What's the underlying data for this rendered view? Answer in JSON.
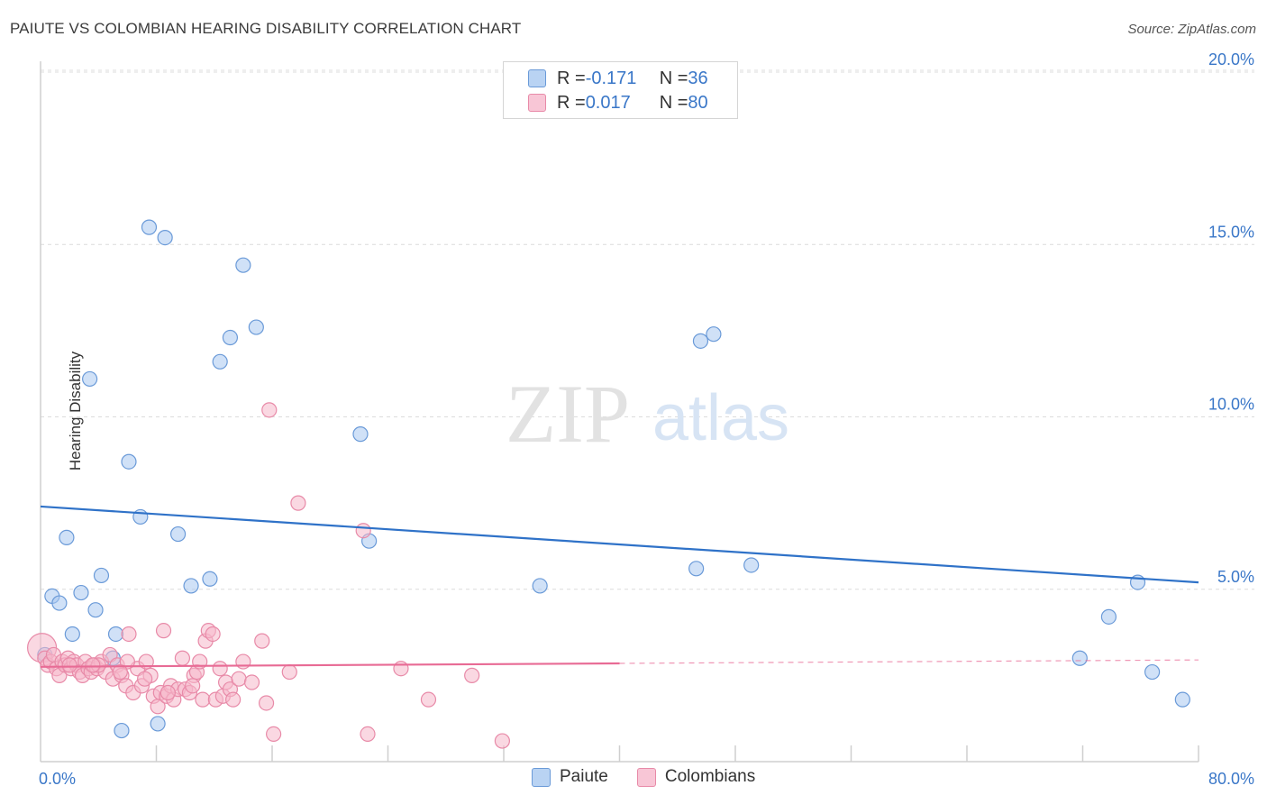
{
  "title": "PAIUTE VS COLOMBIAN HEARING DISABILITY CORRELATION CHART",
  "source": "Source: ZipAtlas.com",
  "watermark": {
    "zip": "ZIP",
    "atlas": "atlas"
  },
  "legend": {
    "rows": [
      {
        "r_label": "R = ",
        "r_value": "-0.171",
        "n_label": "N = ",
        "n_value": "36"
      },
      {
        "r_label": "R = ",
        "r_value": "0.017",
        "n_label": "N = ",
        "n_value": "80"
      }
    ]
  },
  "colors": {
    "paiute_fill": "#a9c8f0",
    "paiute_stroke": "#6a9ad8",
    "paiute_line": "#2f72c8",
    "colombian_fill": "#f6b8cb",
    "colombian_stroke": "#e88aa8",
    "colombian_line": "#e86b95",
    "axis_text": "#3a77c8",
    "grid": "#dcdcdc"
  },
  "chart_data": {
    "type": "scatter",
    "title": "PAIUTE VS COLOMBIAN HEARING DISABILITY CORRELATION CHART",
    "xlabel": "",
    "ylabel": "Hearing Disability",
    "xlim": [
      0,
      80
    ],
    "ylim": [
      0,
      20.5
    ],
    "x_tick_labels": [
      "0.0%",
      "80.0%"
    ],
    "y_ticks": [
      5,
      10,
      15,
      20
    ],
    "y_tick_labels": [
      "5.0%",
      "10.0%",
      "15.0%",
      "20.0%"
    ],
    "series": [
      {
        "name": "Paiute",
        "r": -0.171,
        "n": 36,
        "trend": {
          "x": [
            0,
            80
          ],
          "y": [
            7.4,
            5.2
          ],
          "dashed_from": null
        },
        "points": [
          {
            "x": 0.3,
            "y": 3.1
          },
          {
            "x": 0.8,
            "y": 4.8
          },
          {
            "x": 1.3,
            "y": 4.6
          },
          {
            "x": 1.8,
            "y": 6.5
          },
          {
            "x": 2.2,
            "y": 3.7
          },
          {
            "x": 2.8,
            "y": 4.9
          },
          {
            "x": 3.4,
            "y": 11.1
          },
          {
            "x": 3.8,
            "y": 4.4
          },
          {
            "x": 4.2,
            "y": 5.4
          },
          {
            "x": 5.2,
            "y": 3.7
          },
          {
            "x": 5.0,
            "y": 3.0
          },
          {
            "x": 5.6,
            "y": 0.9
          },
          {
            "x": 6.1,
            "y": 8.7
          },
          {
            "x": 6.9,
            "y": 7.1
          },
          {
            "x": 7.5,
            "y": 15.5
          },
          {
            "x": 8.1,
            "y": 1.1
          },
          {
            "x": 8.6,
            "y": 15.2
          },
          {
            "x": 9.5,
            "y": 6.6
          },
          {
            "x": 10.4,
            "y": 5.1
          },
          {
            "x": 11.7,
            "y": 5.3
          },
          {
            "x": 12.4,
            "y": 11.6
          },
          {
            "x": 13.1,
            "y": 12.3
          },
          {
            "x": 14.0,
            "y": 14.4
          },
          {
            "x": 14.9,
            "y": 12.6
          },
          {
            "x": 22.1,
            "y": 9.5
          },
          {
            "x": 22.7,
            "y": 6.4
          },
          {
            "x": 34.5,
            "y": 5.1
          },
          {
            "x": 45.3,
            "y": 5.6
          },
          {
            "x": 45.6,
            "y": 12.2
          },
          {
            "x": 46.5,
            "y": 12.4
          },
          {
            "x": 49.1,
            "y": 5.7
          },
          {
            "x": 71.8,
            "y": 3.0
          },
          {
            "x": 73.8,
            "y": 4.2
          },
          {
            "x": 75.8,
            "y": 5.2
          },
          {
            "x": 76.8,
            "y": 2.6
          },
          {
            "x": 78.9,
            "y": 1.8
          }
        ]
      },
      {
        "name": "Colombians",
        "r": 0.017,
        "n": 80,
        "trend": {
          "x": [
            0,
            80
          ],
          "y": [
            2.75,
            2.95
          ],
          "dashed_from": 40
        },
        "points": [
          {
            "x": 0.1,
            "y": 3.3
          },
          {
            "x": 0.3,
            "y": 3.0
          },
          {
            "x": 0.5,
            "y": 2.8
          },
          {
            "x": 0.7,
            "y": 2.9
          },
          {
            "x": 0.9,
            "y": 3.1
          },
          {
            "x": 1.1,
            "y": 2.7
          },
          {
            "x": 1.3,
            "y": 2.5
          },
          {
            "x": 1.5,
            "y": 2.9
          },
          {
            "x": 1.7,
            "y": 2.8
          },
          {
            "x": 1.9,
            "y": 3.0
          },
          {
            "x": 2.1,
            "y": 2.7
          },
          {
            "x": 2.3,
            "y": 2.9
          },
          {
            "x": 2.5,
            "y": 2.8
          },
          {
            "x": 2.7,
            "y": 2.6
          },
          {
            "x": 2.9,
            "y": 2.5
          },
          {
            "x": 3.1,
            "y": 2.9
          },
          {
            "x": 3.3,
            "y": 2.7
          },
          {
            "x": 3.5,
            "y": 2.6
          },
          {
            "x": 3.7,
            "y": 2.8
          },
          {
            "x": 3.9,
            "y": 2.7
          },
          {
            "x": 4.2,
            "y": 2.9
          },
          {
            "x": 4.5,
            "y": 2.6
          },
          {
            "x": 4.8,
            "y": 3.1
          },
          {
            "x": 5.0,
            "y": 2.4
          },
          {
            "x": 5.3,
            "y": 2.8
          },
          {
            "x": 5.6,
            "y": 2.5
          },
          {
            "x": 5.9,
            "y": 2.2
          },
          {
            "x": 6.1,
            "y": 3.7
          },
          {
            "x": 6.4,
            "y": 2.0
          },
          {
            "x": 6.7,
            "y": 2.7
          },
          {
            "x": 7.0,
            "y": 2.2
          },
          {
            "x": 7.3,
            "y": 2.9
          },
          {
            "x": 7.6,
            "y": 2.5
          },
          {
            "x": 7.8,
            "y": 1.9
          },
          {
            "x": 8.1,
            "y": 1.6
          },
          {
            "x": 8.3,
            "y": 2.0
          },
          {
            "x": 8.5,
            "y": 3.8
          },
          {
            "x": 8.7,
            "y": 1.9
          },
          {
            "x": 9.0,
            "y": 2.2
          },
          {
            "x": 9.2,
            "y": 1.8
          },
          {
            "x": 9.5,
            "y": 2.1
          },
          {
            "x": 9.8,
            "y": 3.0
          },
          {
            "x": 10.0,
            "y": 2.1
          },
          {
            "x": 10.3,
            "y": 2.0
          },
          {
            "x": 10.6,
            "y": 2.5
          },
          {
            "x": 10.8,
            "y": 2.6
          },
          {
            "x": 11.0,
            "y": 2.9
          },
          {
            "x": 11.2,
            "y": 1.8
          },
          {
            "x": 11.4,
            "y": 3.5
          },
          {
            "x": 11.6,
            "y": 3.8
          },
          {
            "x": 11.9,
            "y": 3.7
          },
          {
            "x": 12.1,
            "y": 1.8
          },
          {
            "x": 12.4,
            "y": 2.7
          },
          {
            "x": 12.6,
            "y": 1.9
          },
          {
            "x": 12.8,
            "y": 2.3
          },
          {
            "x": 13.1,
            "y": 2.1
          },
          {
            "x": 13.3,
            "y": 1.8
          },
          {
            "x": 13.7,
            "y": 2.4
          },
          {
            "x": 14.0,
            "y": 2.9
          },
          {
            "x": 14.6,
            "y": 2.3
          },
          {
            "x": 15.3,
            "y": 3.5
          },
          {
            "x": 15.6,
            "y": 1.7
          },
          {
            "x": 15.8,
            "y": 10.2
          },
          {
            "x": 16.1,
            "y": 0.8
          },
          {
            "x": 17.2,
            "y": 2.6
          },
          {
            "x": 17.8,
            "y": 7.5
          },
          {
            "x": 22.3,
            "y": 6.7
          },
          {
            "x": 22.6,
            "y": 0.8
          },
          {
            "x": 24.9,
            "y": 2.7
          },
          {
            "x": 26.8,
            "y": 1.8
          },
          {
            "x": 29.8,
            "y": 2.5
          },
          {
            "x": 31.9,
            "y": 0.6
          },
          {
            "x": 4.0,
            "y": 2.8
          },
          {
            "x": 6.0,
            "y": 2.9
          },
          {
            "x": 8.8,
            "y": 2.0
          },
          {
            "x": 10.5,
            "y": 2.2
          },
          {
            "x": 2.0,
            "y": 2.8
          },
          {
            "x": 3.6,
            "y": 2.8
          },
          {
            "x": 5.5,
            "y": 2.6
          },
          {
            "x": 7.2,
            "y": 2.4
          }
        ]
      }
    ]
  }
}
